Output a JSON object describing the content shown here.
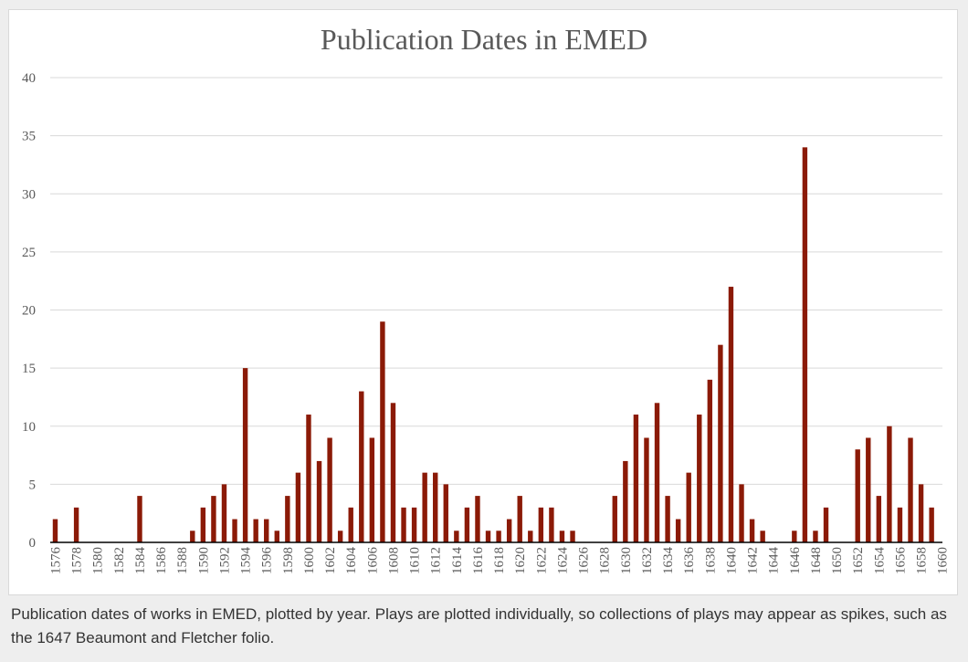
{
  "caption": "Publication dates of works in EMED, plotted by year. Plays are plotted individually, so collections of plays may appear as spikes, such as the 1647 Beaumont and Fletcher folio.",
  "colors": {
    "bar": "#8b1a07",
    "grid": "#d9d9d9",
    "axis": "#000000",
    "text": "#595959",
    "background": "#eeeeee"
  },
  "chart_data": {
    "type": "bar",
    "title": "Publication Dates in EMED",
    "xlabel": "",
    "ylabel": "",
    "ylim": [
      0,
      40
    ],
    "yticks": [
      0,
      5,
      10,
      15,
      20,
      25,
      30,
      35,
      40
    ],
    "grid": true,
    "x_tick_labels": [
      "1576",
      "1578",
      "1580",
      "1582",
      "1584",
      "1586",
      "1588",
      "1590",
      "1592",
      "1594",
      "1596",
      "1598",
      "1600",
      "1602",
      "1604",
      "1606",
      "1608",
      "1610",
      "1612",
      "1614",
      "1616",
      "1618",
      "1620",
      "1622",
      "1624",
      "1626",
      "1628",
      "1630",
      "1632",
      "1634",
      "1636",
      "1638",
      "1640",
      "1642",
      "1644",
      "1646",
      "1648",
      "1650",
      "1652",
      "1654",
      "1656",
      "1658",
      "1660"
    ],
    "categories": [
      1576,
      1577,
      1578,
      1579,
      1580,
      1581,
      1582,
      1583,
      1584,
      1585,
      1586,
      1587,
      1588,
      1589,
      1590,
      1591,
      1592,
      1593,
      1594,
      1595,
      1596,
      1597,
      1598,
      1599,
      1600,
      1601,
      1602,
      1603,
      1604,
      1605,
      1606,
      1607,
      1608,
      1609,
      1610,
      1611,
      1612,
      1613,
      1614,
      1615,
      1616,
      1617,
      1618,
      1619,
      1620,
      1621,
      1622,
      1623,
      1624,
      1625,
      1626,
      1627,
      1628,
      1629,
      1630,
      1631,
      1632,
      1633,
      1634,
      1635,
      1636,
      1637,
      1638,
      1639,
      1640,
      1641,
      1642,
      1643,
      1644,
      1645,
      1646,
      1647,
      1648,
      1649,
      1650,
      1651,
      1652,
      1653,
      1654,
      1655,
      1656,
      1657,
      1658,
      1659,
      1660
    ],
    "values": [
      2,
      0,
      3,
      0,
      0,
      0,
      0,
      0,
      4,
      0,
      0,
      0,
      0,
      1,
      3,
      4,
      5,
      2,
      15,
      2,
      2,
      1,
      4,
      6,
      11,
      7,
      9,
      1,
      3,
      13,
      9,
      19,
      12,
      3,
      3,
      6,
      6,
      5,
      1,
      3,
      4,
      1,
      1,
      2,
      4,
      1,
      3,
      3,
      1,
      1,
      0,
      0,
      0,
      4,
      7,
      11,
      9,
      12,
      4,
      2,
      6,
      11,
      14,
      17,
      22,
      5,
      2,
      1,
      0,
      0,
      1,
      34,
      1,
      3,
      0,
      0,
      8,
      9,
      4,
      10,
      3,
      9,
      5,
      3,
      0
    ]
  }
}
